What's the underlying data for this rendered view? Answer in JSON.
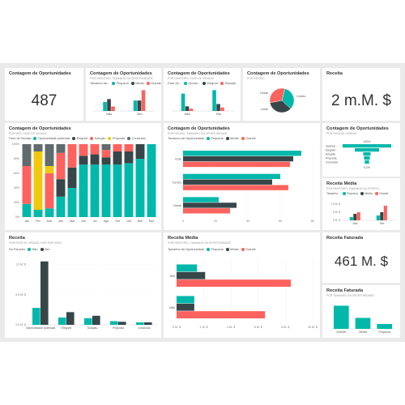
{
  "colors": {
    "teal": "#01B8AA",
    "dark": "#374649",
    "red": "#FD625E",
    "yellow": "#F2C80F",
    "gray": "#5F6B6D",
    "lightteal": "#8AD4EB"
  },
  "tiles": {
    "count": {
      "title": "Contagem de Oportunidades",
      "value": "487"
    },
    "count_size": {
      "title": "Contagem de Oportunidades",
      "subtitle": "POR PARCEIRO, TAMANHO DA OPORTUNIDADE",
      "legend_title": "Tamanho da...",
      "legend": [
        "Pequena",
        "Média",
        "Grande"
      ]
    },
    "count_stage": {
      "title": "Contagem de Oportunidades",
      "subtitle": "POR PARCEIRO, FASE DE VENDAS",
      "legend_title": "Fase de...",
      "legend": [
        "Oportu...",
        "Elegível",
        "Solução"
      ]
    },
    "count_pie": {
      "title": "Contagem de Oportunidades",
      "subtitle": "POR REGIÃO"
    },
    "revenue": {
      "title": "Receita",
      "value": "2 m.M. $"
    },
    "count_month": {
      "title": "Contagem de Oportunidades",
      "subtitle": "POR MÊS, FASE DE VENDAS",
      "legend_title": "Fase de Vendas",
      "legend": [
        "Oportunidade potencial",
        "Elegível",
        "Solução",
        "Proposta",
        "Concluído"
      ]
    },
    "count_region": {
      "title": "Contagem de Oportunidades",
      "subtitle": "POR REGIÃO, TAMANHO DA OPORTUNIDADE",
      "legend_title": "Tamanho da Oportunidade",
      "legend": [
        "Pequena",
        "Média",
        "Grande"
      ]
    },
    "funnel": {
      "title": "Contagem de Oportunidades",
      "subtitle": "POR FASE DE VENDAS"
    },
    "avg_revenue_small": {
      "title": "Receita Média",
      "subtitle": "POR PARCEIRO, TAMANHO DA OPORTU...",
      "legend_title": "Tamanho...",
      "legend": [
        "Pequena",
        "Média",
        "Grande"
      ]
    },
    "revenue_stage": {
      "title": "Receita",
      "subtitle": "POR FASE DE VENDAS, POR PARCEIRO",
      "legend_title": "Do Parceiro",
      "legend": [
        "Não",
        "Sim"
      ]
    },
    "avg_revenue": {
      "title": "Receita Média",
      "subtitle": "POR PARCEIRO, TAMANHO DA OPORTUNIDADE",
      "legend_title": "Tamanho da Oportunidade",
      "legend": [
        "Pequena",
        "Média",
        "Grande"
      ]
    },
    "invoiced": {
      "title": "Receita Faturada",
      "value": "461 M. $"
    },
    "invoiced_size": {
      "title": "Receita Faturada",
      "subtitle": "POR TAMANHO DA OPORTUNIDADE"
    }
  },
  "chart_data": [
    {
      "id": "count_by_partner_size",
      "type": "bar",
      "categories": [
        "Não",
        "Sim"
      ],
      "series": [
        {
          "name": "Pequena",
          "values": [
            12,
            14
          ]
        },
        {
          "name": "Média",
          "values": [
            16,
            14
          ]
        },
        {
          "name": "Grande",
          "values": [
            6,
            28
          ]
        }
      ]
    },
    {
      "id": "count_by_partner_stage",
      "type": "bar",
      "categories": [
        "Não",
        "Sim"
      ],
      "series": [
        {
          "name": "Oportu...",
          "values": [
            30,
            36
          ]
        },
        {
          "name": "Elegível",
          "values": [
            8,
            12
          ]
        },
        {
          "name": "Solução",
          "values": [
            4,
            6
          ]
        }
      ]
    },
    {
      "id": "count_by_region",
      "type": "pie",
      "categories": [
        "Centro",
        "Leste",
        "Oeste"
      ],
      "values": [
        33,
        35,
        32
      ]
    },
    {
      "id": "count_by_month_stage",
      "type": "bar",
      "stacked": "percent",
      "categories": [
        "Jan",
        "Fev",
        "Mar",
        "Abr",
        "Mai",
        "Jun",
        "Jul",
        "Ago",
        "Set",
        "Out",
        "Nov",
        "Dez"
      ],
      "yticks": [
        "0%",
        "20%",
        "40%",
        "60%",
        "80%",
        "100%"
      ],
      "series": [
        {
          "name": "Oportunidade potencial",
          "values": [
            18,
            10,
            12,
            28,
            40,
            72,
            72,
            72,
            72,
            74,
            80,
            100
          ]
        },
        {
          "name": "Elegível",
          "values": [
            0,
            0,
            0,
            24,
            28,
            12,
            14,
            10,
            18,
            16,
            20,
            0
          ]
        },
        {
          "name": "Solução",
          "values": [
            52,
            0,
            48,
            36,
            32,
            16,
            14,
            10,
            10,
            10,
            0,
            0
          ]
        },
        {
          "name": "Proposta",
          "values": [
            0,
            80,
            10,
            0,
            0,
            0,
            0,
            0,
            0,
            0,
            0,
            0
          ]
        },
        {
          "name": "Concluído",
          "values": [
            30,
            10,
            30,
            12,
            0,
            0,
            0,
            8,
            0,
            0,
            0,
            0
          ]
        }
      ]
    },
    {
      "id": "count_by_region_size",
      "type": "bar",
      "orientation": "horizontal",
      "categories": [
        "Este",
        "Centro",
        "Oeste"
      ],
      "xticks": [
        "0",
        "20",
        "40",
        "60",
        "80"
      ],
      "xlim": [
        0,
        80
      ],
      "series": [
        {
          "name": "Pequena",
          "values": [
            73,
            60,
            22
          ]
        },
        {
          "name": "Média",
          "values": [
            68,
            55,
            33
          ]
        },
        {
          "name": "Grande",
          "values": [
            66,
            65,
            29
          ]
        }
      ]
    },
    {
      "id": "count_by_funnel_stage",
      "type": "bar",
      "orientation": "funnel",
      "categories": [
        "Oportun...",
        "Elegível",
        "Solução",
        "Proposta",
        "Concluído"
      ],
      "values": [
        100,
        50,
        15,
        12,
        9
      ],
      "top_label": "100%",
      "bottom_label": "9,2%"
    },
    {
      "id": "avg_revenue_small",
      "type": "bar",
      "categories": [
        "Não",
        "Sim"
      ],
      "yticks": [
        "0 M. $",
        "5 M. $",
        "10 M. $"
      ],
      "ylim": [
        0,
        12
      ],
      "series": [
        {
          "name": "Pequena",
          "values": [
            2,
            3
          ]
        },
        {
          "name": "Média",
          "values": [
            4,
            5
          ]
        },
        {
          "name": "Grande",
          "values": [
            5,
            9
          ]
        }
      ]
    },
    {
      "id": "revenue_by_stage_partner",
      "type": "bar",
      "categories": [
        "Oportunidade potencial",
        "Elegível",
        "Solução",
        "Proposta",
        "Concluído"
      ],
      "yticks": [
        "0,0 M. $",
        "0,5 M. $",
        "1,0 M. $"
      ],
      "ylim": [
        0,
        1.1
      ],
      "series": [
        {
          "name": "Não",
          "values": [
            0.28,
            0.12,
            0.11,
            0.06,
            0.04
          ]
        },
        {
          "name": "Sim",
          "values": [
            1.05,
            0.21,
            0.15,
            0.05,
            0.04
          ]
        }
      ]
    },
    {
      "id": "avg_revenue_by_partner_size",
      "type": "bar",
      "orientation": "horizontal",
      "categories": [
        "Sim",
        "Não"
      ],
      "xticks": [
        "0 M. $",
        "2 M. $",
        "4 M. $",
        "6 M. $",
        "8 M. $",
        "10 M. $"
      ],
      "xlim": [
        0,
        10
      ],
      "series": [
        {
          "name": "Pequena",
          "values": [
            1.5,
            1.3
          ]
        },
        {
          "name": "Média",
          "values": [
            2.1,
            1.3
          ]
        },
        {
          "name": "Grande",
          "values": [
            8.4,
            6.5
          ]
        }
      ]
    },
    {
      "id": "invoiced_by_size",
      "type": "bar",
      "categories": [
        "Grande",
        "Média",
        "Pequena"
      ],
      "values": [
        38,
        18,
        8
      ]
    }
  ]
}
